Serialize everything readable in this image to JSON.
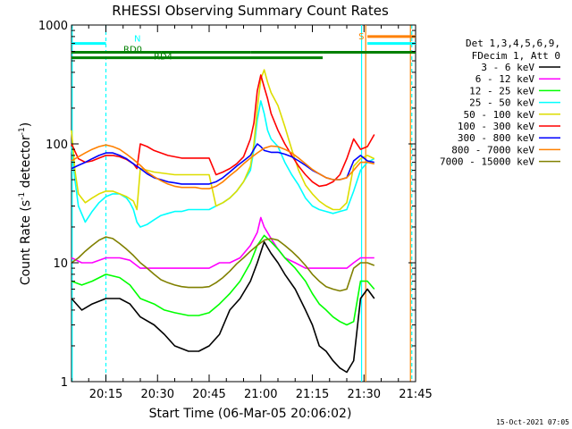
{
  "chart_data": {
    "type": "line",
    "title": "RHESSI Observing Summary Count Rates",
    "xlabel": "Start Time (06-Mar-05 20:06:02)",
    "ylabel": "Count Rate (s⁻¹ detector⁻¹)",
    "ylabel_main": "Count Rate (s",
    "ylabel_sup1": "-1",
    "ylabel_mid": " detector",
    "ylabel_sup2": "-1",
    "ylabel_end": ")",
    "yscale": "log",
    "ylim": [
      1,
      1000
    ],
    "xlim_minutes": [
      0,
      100
    ],
    "x_ticks": [
      {
        "label": "20:15",
        "minute": 10
      },
      {
        "label": "20:30",
        "minute": 25
      },
      {
        "label": "20:45",
        "minute": 40
      },
      {
        "label": "21:00",
        "minute": 55
      },
      {
        "label": "21:15",
        "minute": 70
      },
      {
        "label": "21:30",
        "minute": 85
      },
      {
        "label": "21:45",
        "minute": 100
      }
    ],
    "y_ticks": [
      {
        "label": "1",
        "value": 1
      },
      {
        "label": "10",
        "value": 10
      },
      {
        "label": "100",
        "value": 100
      },
      {
        "label": "1000",
        "value": 1000
      }
    ],
    "legend_header": [
      "Det 1,3,4,5,6,9,",
      "FDecim 1, Att 0"
    ],
    "legend_placement": "right",
    "series": [
      {
        "name": "3 - 6 keV",
        "color": "#000000",
        "x": [
          0,
          3,
          6,
          10,
          14,
          17,
          20,
          24,
          27,
          30,
          34,
          37,
          40,
          43,
          46,
          49,
          52,
          54,
          56,
          58,
          60,
          62,
          65,
          68,
          70,
          72,
          74,
          76,
          78,
          80,
          82,
          84,
          86,
          88
        ],
        "y": [
          5,
          4,
          4.5,
          5,
          5,
          4.5,
          3.5,
          3,
          2.5,
          2,
          1.8,
          1.8,
          2,
          2.5,
          4,
          5,
          7,
          10,
          15,
          12,
          10,
          8,
          6,
          4,
          3,
          2,
          1.8,
          1.5,
          1.3,
          1.2,
          1.5,
          5,
          6,
          5
        ]
      },
      {
        "name": "6 - 12 keV",
        "color": "#ff00ff",
        "x": [
          0,
          3,
          6,
          10,
          14,
          17,
          20,
          24,
          27,
          30,
          34,
          37,
          40,
          43,
          46,
          49,
          52,
          54,
          55,
          56,
          58,
          60,
          62,
          65,
          68,
          70,
          72,
          74,
          76,
          78,
          80,
          82,
          84,
          86,
          88
        ],
        "y": [
          11,
          10,
          10,
          11,
          11,
          10.5,
          9,
          9,
          9,
          9,
          9,
          9,
          9,
          10,
          10,
          11,
          14,
          18,
          24,
          20,
          16,
          13,
          11,
          10,
          9,
          9,
          9,
          9,
          9,
          9,
          9,
          10,
          11,
          11,
          11
        ]
      },
      {
        "name": "12 - 25 keV",
        "color": "#00ff00",
        "x": [
          0,
          3,
          6,
          10,
          14,
          17,
          20,
          24,
          27,
          30,
          34,
          37,
          40,
          43,
          46,
          49,
          52,
          54,
          56,
          58,
          60,
          62,
          65,
          68,
          70,
          72,
          74,
          76,
          78,
          80,
          82,
          84,
          86,
          88
        ],
        "y": [
          7,
          6.5,
          7,
          8,
          7.5,
          6.5,
          5,
          4.5,
          4,
          3.8,
          3.6,
          3.6,
          3.8,
          4.5,
          5.5,
          7,
          10,
          14,
          17,
          15,
          13,
          11,
          9,
          7,
          5.5,
          4.5,
          4,
          3.5,
          3.2,
          3,
          3.2,
          7,
          7,
          6
        ]
      },
      {
        "name": "25 - 50 keV",
        "color": "#00ffff",
        "x": [
          0,
          1,
          2,
          4,
          6,
          8,
          10,
          12,
          14,
          16,
          17,
          18,
          19,
          20,
          22,
          24,
          26,
          28,
          30,
          32,
          34,
          36,
          38,
          40,
          42,
          44,
          46,
          48,
          50,
          52,
          53,
          54,
          55,
          56,
          57,
          58,
          60,
          62,
          64,
          66,
          68,
          70,
          72,
          74,
          76,
          78,
          80,
          82,
          84,
          86,
          88
        ],
        "y": [
          95,
          50,
          30,
          22,
          27,
          32,
          36,
          38,
          38,
          35,
          32,
          28,
          22,
          20,
          21,
          23,
          25,
          26,
          27,
          27,
          28,
          28,
          28,
          28,
          30,
          32,
          35,
          40,
          48,
          60,
          90,
          160,
          230,
          180,
          130,
          110,
          95,
          70,
          55,
          45,
          35,
          30,
          28,
          27,
          26,
          27,
          28,
          40,
          60,
          70,
          75
        ]
      },
      {
        "name": "50 - 100 keV",
        "color": "#dddd00",
        "x": [
          0,
          1,
          2,
          4,
          6,
          8,
          10,
          12,
          14,
          16,
          18,
          19,
          20,
          22,
          24,
          26,
          28,
          30,
          32,
          34,
          36,
          38,
          40,
          42,
          44,
          46,
          48,
          50,
          52,
          53,
          54,
          55,
          56,
          57,
          58,
          60,
          62,
          64,
          66,
          68,
          70,
          72,
          74,
          76,
          78,
          80,
          82,
          84,
          86,
          88
        ],
        "y": [
          130,
          60,
          38,
          32,
          35,
          38,
          40,
          40,
          38,
          36,
          33,
          28,
          62,
          60,
          58,
          57,
          56,
          55,
          55,
          55,
          55,
          55,
          55,
          30,
          32,
          35,
          40,
          48,
          65,
          100,
          200,
          350,
          420,
          330,
          270,
          210,
          140,
          90,
          60,
          45,
          38,
          33,
          30,
          28,
          28,
          32,
          65,
          75,
          80,
          75
        ]
      },
      {
        "name": "100 - 300 keV",
        "color": "#ff0000",
        "x": [
          0,
          2,
          4,
          6,
          8,
          10,
          12,
          14,
          16,
          18,
          19,
          20,
          22,
          24,
          26,
          28,
          30,
          32,
          34,
          36,
          38,
          40,
          42,
          44,
          46,
          48,
          50,
          52,
          53,
          54,
          55,
          56,
          57,
          58,
          60,
          62,
          64,
          66,
          68,
          70,
          72,
          74,
          76,
          78,
          80,
          82,
          84,
          86,
          88
        ],
        "y": [
          100,
          75,
          70,
          72,
          76,
          80,
          80,
          78,
          74,
          68,
          62,
          100,
          95,
          88,
          84,
          80,
          78,
          76,
          76,
          76,
          76,
          76,
          55,
          58,
          62,
          68,
          78,
          110,
          150,
          280,
          380,
          300,
          240,
          180,
          130,
          100,
          80,
          65,
          55,
          48,
          44,
          45,
          48,
          55,
          75,
          110,
          90,
          95,
          120
        ]
      },
      {
        "name": "300 - 800 keV",
        "color": "#0000ff",
        "x": [
          0,
          2,
          4,
          6,
          8,
          10,
          12,
          14,
          16,
          18,
          20,
          22,
          24,
          26,
          28,
          30,
          32,
          34,
          36,
          38,
          40,
          42,
          44,
          46,
          48,
          50,
          52,
          53,
          54,
          55,
          56,
          58,
          60,
          62,
          64,
          66,
          68,
          70,
          72,
          74,
          76,
          78,
          80,
          82,
          84,
          86,
          88
        ],
        "y": [
          62,
          66,
          70,
          75,
          80,
          84,
          84,
          80,
          75,
          68,
          62,
          56,
          52,
          50,
          48,
          47,
          46,
          46,
          46,
          46,
          46,
          48,
          52,
          58,
          65,
          72,
          80,
          90,
          100,
          95,
          88,
          85,
          85,
          82,
          78,
          72,
          66,
          60,
          56,
          52,
          50,
          50,
          52,
          72,
          80,
          72,
          70
        ]
      },
      {
        "name": "800 - 7000 keV",
        "color": "#ff8000",
        "x": [
          0,
          2,
          4,
          6,
          8,
          10,
          12,
          14,
          16,
          18,
          20,
          22,
          24,
          26,
          28,
          30,
          32,
          34,
          36,
          38,
          40,
          42,
          44,
          46,
          48,
          50,
          52,
          54,
          56,
          58,
          60,
          62,
          64,
          66,
          68,
          70,
          72,
          74,
          76,
          78,
          80,
          82,
          84,
          86,
          88
        ],
        "y": [
          72,
          78,
          84,
          90,
          95,
          98,
          95,
          90,
          82,
          74,
          66,
          58,
          53,
          49,
          46,
          44,
          43,
          43,
          43,
          42,
          42,
          44,
          48,
          54,
          60,
          68,
          76,
          84,
          92,
          96,
          95,
          90,
          84,
          76,
          68,
          61,
          56,
          52,
          50,
          50,
          52,
          60,
          70,
          70,
          68
        ]
      },
      {
        "name": "7000 - 15000 keV",
        "color": "#808000",
        "x": [
          0,
          2,
          4,
          6,
          8,
          10,
          12,
          14,
          16,
          18,
          20,
          22,
          24,
          26,
          28,
          30,
          32,
          34,
          36,
          38,
          40,
          42,
          44,
          46,
          48,
          50,
          52,
          54,
          56,
          58,
          60,
          62,
          64,
          66,
          68,
          70,
          72,
          74,
          76,
          78,
          80,
          82,
          84,
          86,
          88
        ],
        "y": [
          10,
          11,
          12.5,
          14,
          15.5,
          16.5,
          16,
          14.5,
          13,
          11.5,
          10,
          9,
          8,
          7.2,
          6.8,
          6.5,
          6.3,
          6.2,
          6.2,
          6.2,
          6.3,
          6.8,
          7.5,
          8.5,
          9.8,
          11,
          12.5,
          14,
          15.5,
          16,
          15.5,
          14,
          12.5,
          11,
          9.5,
          8,
          7,
          6.3,
          6,
          5.8,
          6,
          9,
          10,
          10,
          9.5
        ]
      }
    ],
    "annotations": {
      "attenuator_lines": [
        {
          "name": "N",
          "label": "N",
          "color": "#00ffff",
          "y_level": 700,
          "segments": [
            [
              0,
              10
            ]
          ]
        },
        {
          "name": "RD0",
          "label": "RD0",
          "color": "#008000",
          "y_level": 590,
          "segments": [
            [
              0,
              26
            ],
            [
              26,
              52
            ],
            [
              52,
              73
            ],
            [
              73,
              100
            ]
          ]
        },
        {
          "name": "RD4",
          "label": "RD4",
          "color": "#008000",
          "y_level": 530,
          "segments": [
            [
              0,
              40
            ],
            [
              40,
              73
            ]
          ]
        },
        {
          "name": "S",
          "label": "S",
          "color": "#ff8000",
          "y_level": 800,
          "segments": [
            [
              86,
              100
            ]
          ]
        },
        {
          "name": "S-cyan",
          "label": "",
          "color": "#00ffff",
          "y_level": 700,
          "segments": [
            [
              86,
              100
            ]
          ]
        }
      ],
      "vertical_lines": [
        {
          "minute": 0.2,
          "color": "#00ffff",
          "dashed": false
        },
        {
          "minute": 10,
          "color": "#00ffff",
          "dashed": true
        },
        {
          "minute": 84.3,
          "color": "#00ffff",
          "dashed": false
        },
        {
          "minute": 85.5,
          "color": "#ff8000",
          "dashed": false
        },
        {
          "minute": 98.5,
          "color": "#ff8000",
          "dashed": false
        },
        {
          "minute": 98.9,
          "color": "#00ffff",
          "dashed": true
        }
      ]
    }
  },
  "footer": {
    "timestamp": "15-Oct-2021 07:05"
  }
}
